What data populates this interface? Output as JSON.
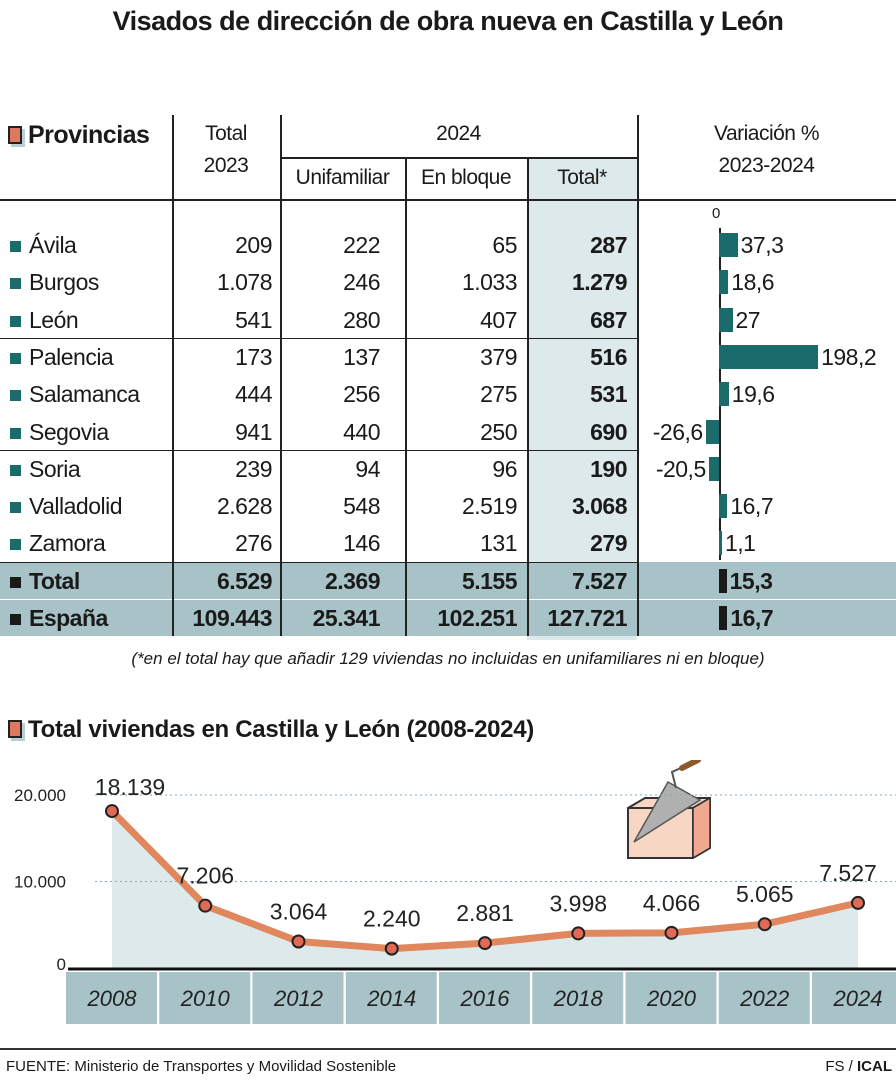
{
  "title": "Visados de dirección de obra nueva en Castilla y León",
  "table": {
    "headers": {
      "provincias": "Provincias",
      "total2023_line1": "Total",
      "total2023_line2": "2023",
      "year2024": "2024",
      "unifamiliar": "Unifamiliar",
      "en_bloque": "En bloque",
      "total": "Total*",
      "variacion_line1": "Variación %",
      "variacion_line2": "2023-2024",
      "variacion_zero": "0"
    },
    "rows": [
      {
        "name": "Ávila",
        "total2023": "209",
        "unifamiliar": "222",
        "en_bloque": "65",
        "total2024": "287",
        "variacion": 37.3,
        "variacion_label": "37,3"
      },
      {
        "name": "Burgos",
        "total2023": "1.078",
        "unifamiliar": "246",
        "en_bloque": "1.033",
        "total2024": "1.279",
        "variacion": 18.6,
        "variacion_label": "18,6"
      },
      {
        "name": "León",
        "total2023": "541",
        "unifamiliar": "280",
        "en_bloque": "407",
        "total2024": "687",
        "variacion": 27,
        "variacion_label": "27"
      },
      {
        "name": "Palencia",
        "total2023": "173",
        "unifamiliar": "137",
        "en_bloque": "379",
        "total2024": "516",
        "variacion": 198.2,
        "variacion_label": "198,2"
      },
      {
        "name": "Salamanca",
        "total2023": "444",
        "unifamiliar": "256",
        "en_bloque": "275",
        "total2024": "531",
        "variacion": 19.6,
        "variacion_label": "19,6"
      },
      {
        "name": "Segovia",
        "total2023": "941",
        "unifamiliar": "440",
        "en_bloque": "250",
        "total2024": "690",
        "variacion": -26.6,
        "variacion_label": "-26,6"
      },
      {
        "name": "Soria",
        "total2023": "239",
        "unifamiliar": "94",
        "en_bloque": "96",
        "total2024": "190",
        "variacion": -20.5,
        "variacion_label": "-20,5"
      },
      {
        "name": "Valladolid",
        "total2023": "2.628",
        "unifamiliar": "548",
        "en_bloque": "2.519",
        "total2024": "3.068",
        "variacion": 16.7,
        "variacion_label": "16,7"
      },
      {
        "name": "Zamora",
        "total2023": "276",
        "unifamiliar": "146",
        "en_bloque": "131",
        "total2024": "279",
        "variacion": 1.1,
        "variacion_label": "1,1"
      }
    ],
    "summary_rows": [
      {
        "name": "Total",
        "total2023": "6.529",
        "unifamiliar": "2.369",
        "en_bloque": "5.155",
        "total2024": "7.527",
        "variacion": 15.3,
        "variacion_label": "15,3"
      },
      {
        "name": "España",
        "total2023": "109.443",
        "unifamiliar": "25.341",
        "en_bloque": "102.251",
        "total2024": "127.721",
        "variacion": 16.7,
        "variacion_label": "16,7"
      }
    ],
    "note": "(*en el total hay que añadir 129 viviendas no incluidas en unifamiliares ni en bloque)"
  },
  "colors": {
    "teal_bar": "#1c6b6b",
    "dark_bar": "#1a1a1a",
    "shade_light": "#dde9ea",
    "shade_summary": "#a8c3c8",
    "line": "#e0875e",
    "marker": "#e06a55"
  },
  "chart_data": {
    "type": "line",
    "title": "Total viviendas en Castilla y León (2008-2024)",
    "x": [
      "2008",
      "2010",
      "2012",
      "2014",
      "2016",
      "2018",
      "2020",
      "2022",
      "2024"
    ],
    "values": [
      18139,
      7206,
      3064,
      2240,
      2881,
      3998,
      4066,
      5065,
      7527
    ],
    "labels": [
      "18.139",
      "7.206",
      "3.064",
      "2.240",
      "2.881",
      "3.998",
      "4.066",
      "5.065",
      "7.527"
    ],
    "yticks": [
      "0",
      "10.000",
      "20.000"
    ],
    "ylim": [
      0,
      20000
    ],
    "grid": "dotted horizontal",
    "area_fill": true
  },
  "footer": {
    "source": "FUENTE: Ministerio de Transportes y Movilidad Sostenible",
    "credit_prefix": "FS / ",
    "credit_brand": "ICAL"
  }
}
